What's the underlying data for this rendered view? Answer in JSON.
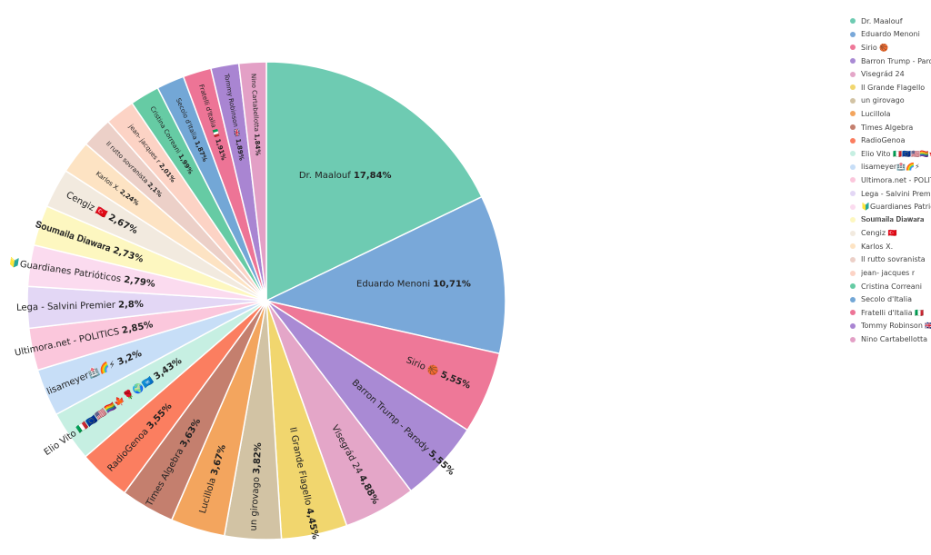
{
  "chart_data": {
    "type": "pie",
    "title": "",
    "legend_position": "right",
    "slices": [
      {
        "label": "Dr. Maalouf",
        "value": 17.84,
        "value_label": "17,84%",
        "color": "#6ecbb2"
      },
      {
        "label": "Eduardo Menoni",
        "value": 10.71,
        "value_label": "10,71%",
        "color": "#79a8d9"
      },
      {
        "label": "Sirio 🏀",
        "value": 5.55,
        "value_label": "5,55%",
        "color": "#ee7898"
      },
      {
        "label": "Barron Trump - Parody",
        "value": 5.55,
        "value_label": "5,55%",
        "color": "#a98ad4"
      },
      {
        "label": "Visegrád 24",
        "value": 4.88,
        "value_label": "4,88%",
        "color": "#e4a6c8"
      },
      {
        "label": "Il Grande Flagello",
        "value": 4.45,
        "value_label": "4,45%",
        "color": "#f1d66e"
      },
      {
        "label": "un girovago",
        "value": 3.82,
        "value_label": "3,82%",
        "color": "#d2c3a4"
      },
      {
        "label": "Lucillola",
        "value": 3.67,
        "value_label": "3,67%",
        "color": "#f3a55e"
      },
      {
        "label": "Times Algebra",
        "value": 3.63,
        "value_label": "3,63%",
        "color": "#c47f6e"
      },
      {
        "label": "RadioGenoa",
        "value": 3.55,
        "value_label": "3,55%",
        "color": "#fb7e60"
      },
      {
        "label": "Elio Vito 🇮🇹🇪🇺🇺🇸🏳️‍🌈🍁🌹🌍🇺🇳",
        "value": 3.43,
        "value_label": "3,43%",
        "color": "#c6efe2"
      },
      {
        "label": "lisameyer🏥🌈⚡",
        "value": 3.2,
        "value_label": "3,2%",
        "color": "#c7def7"
      },
      {
        "label": "Ultimora.net - POLITICS",
        "value": 2.85,
        "value_label": "2,85%",
        "color": "#fbc7dc"
      },
      {
        "label": "Lega - Salvini Premier",
        "value": 2.8,
        "value_label": "2,8%",
        "color": "#e3d7f5"
      },
      {
        "label": "🔰Guardianes Patrióticos",
        "value": 2.79,
        "value_label": "2,79%",
        "color": "#fbdbef"
      },
      {
        "label": "𝐒𝐨𝐮𝐦𝐚𝐢𝐥𝐚 𝐃𝐢𝐚𝐰𝐚𝐫𝐚",
        "value": 2.73,
        "value_label": "2,73%",
        "color": "#fdf7c0"
      },
      {
        "label": "Cengiz 🇹🇷",
        "value": 2.67,
        "value_label": "2,67%",
        "color": "#f2eadf"
      },
      {
        "label": "Karlos X.",
        "value": 2.24,
        "value_label": "2,24%",
        "color": "#fde3c3"
      },
      {
        "label": "Il rutto sovranista",
        "value": 2.1,
        "value_label": "2,1%",
        "color": "#ecd0c8"
      },
      {
        "label": "jean- jacques r",
        "value": 2.01,
        "value_label": "2,01%",
        "color": "#fcd3c5"
      },
      {
        "label": "Cristina Correani",
        "value": 1.99,
        "value_label": "1,99%",
        "color": "#66cba4"
      },
      {
        "label": "Secolo d'Italia",
        "value": 1.87,
        "value_label": "1,87%",
        "color": "#73a7d6"
      },
      {
        "label": "Fratelli d'Italia 🇮🇹",
        "value": 1.91,
        "value_label": "1,91%",
        "color": "#ed7496"
      },
      {
        "label": "Tommy Robinson 🇬🇧",
        "value": 1.89,
        "value_label": "1,89%",
        "color": "#a985d2"
      },
      {
        "label": "Nino Cartabellotta",
        "value": 1.84,
        "value_label": "1,84%",
        "color": "#e3a0c6"
      }
    ]
  }
}
